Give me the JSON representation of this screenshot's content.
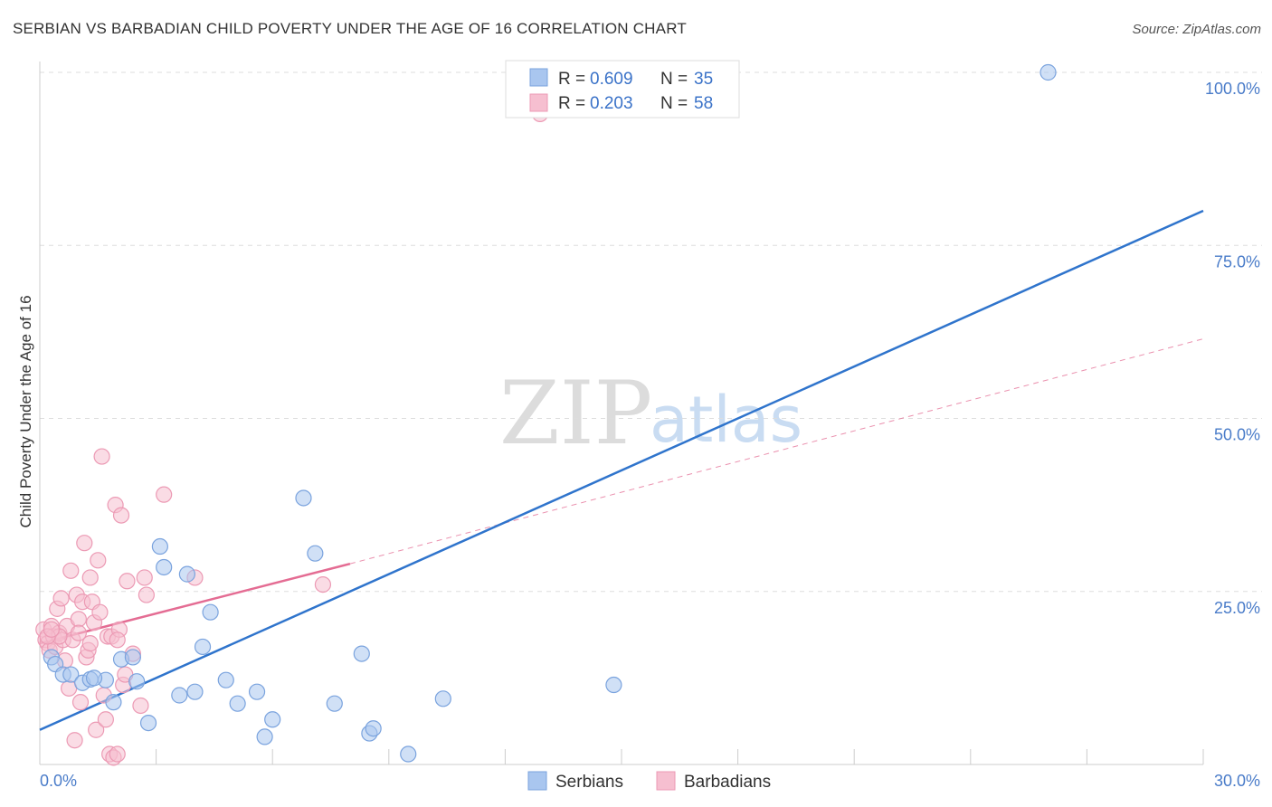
{
  "title": "SERBIAN VS BARBADIAN CHILD POVERTY UNDER THE AGE OF 16 CORRELATION CHART",
  "source": "Source: ZipAtlas.com",
  "colors": {
    "serbians_fill": "#a9c6ef",
    "serbians_stroke": "#7aa3de",
    "serbians_line": "#2f74cc",
    "barbadians_fill": "#f6bfd0",
    "barbadians_stroke": "#ec9ab4",
    "barbadians_line": "#e46c93",
    "grid": "#dddddd",
    "tick_text": "#4a7cc9"
  },
  "chart_data": {
    "type": "scatter",
    "title": "SERBIAN VS BARBADIAN CHILD POVERTY UNDER THE AGE OF 16 CORRELATION CHART",
    "xlabel": "",
    "ylabel": "Child Poverty Under the Age of 16",
    "xlim": [
      0,
      30
    ],
    "ylim": [
      0,
      100
    ],
    "x_tick_labels": [
      "0.0%",
      "30.0%"
    ],
    "y_ticks": [
      25,
      50,
      75,
      100
    ],
    "y_tick_labels": [
      "25.0%",
      "50.0%",
      "75.0%",
      "100.0%"
    ],
    "legend_position": "top-center",
    "series": [
      {
        "name": "Serbians",
        "r_label": "R =",
        "r_value": "0.609",
        "n_label": "N =",
        "n_value": "35",
        "trend": {
          "x0": 0,
          "y0": 5.0,
          "x1": 30,
          "y1": 80.0,
          "style": "solid"
        },
        "points": [
          [
            0.3,
            15.5
          ],
          [
            0.4,
            14.5
          ],
          [
            0.6,
            13.0
          ],
          [
            0.8,
            13.0
          ],
          [
            1.1,
            11.8
          ],
          [
            1.3,
            12.3
          ],
          [
            1.7,
            12.2
          ],
          [
            1.9,
            9.0
          ],
          [
            2.1,
            15.2
          ],
          [
            2.4,
            15.5
          ],
          [
            2.5,
            12.0
          ],
          [
            2.8,
            6.0
          ],
          [
            3.1,
            31.5
          ],
          [
            3.2,
            28.5
          ],
          [
            3.6,
            10.0
          ],
          [
            3.8,
            27.5
          ],
          [
            4.0,
            10.5
          ],
          [
            4.2,
            17.0
          ],
          [
            4.4,
            22.0
          ],
          [
            4.8,
            12.2
          ],
          [
            5.1,
            8.8
          ],
          [
            5.6,
            10.5
          ],
          [
            5.8,
            4.0
          ],
          [
            6.0,
            6.5
          ],
          [
            6.8,
            38.5
          ],
          [
            7.1,
            30.5
          ],
          [
            7.6,
            8.8
          ],
          [
            8.3,
            16.0
          ],
          [
            8.5,
            4.5
          ],
          [
            8.6,
            5.2
          ],
          [
            9.5,
            1.5
          ],
          [
            10.4,
            9.5
          ],
          [
            14.8,
            11.5
          ],
          [
            26.0,
            100.0
          ],
          [
            1.4,
            12.5
          ]
        ]
      },
      {
        "name": "Barbadians",
        "r_label": "R =",
        "r_value": "0.203",
        "n_label": "N =",
        "n_value": "58",
        "trend": {
          "x0": 0,
          "y0": 17.5,
          "x1": 8,
          "y1": 29.0,
          "style": "solid"
        },
        "trend_extension": {
          "x0": 8,
          "y0": 29.0,
          "x1": 30,
          "y1": 61.5,
          "style": "dashed"
        },
        "points": [
          [
            0.1,
            19.5
          ],
          [
            0.15,
            18.0
          ],
          [
            0.2,
            17.5
          ],
          [
            0.25,
            16.5
          ],
          [
            0.3,
            20.0
          ],
          [
            0.35,
            18.5
          ],
          [
            0.4,
            17.0
          ],
          [
            0.45,
            22.5
          ],
          [
            0.5,
            19.0
          ],
          [
            0.55,
            24.0
          ],
          [
            0.6,
            18.0
          ],
          [
            0.65,
            15.0
          ],
          [
            0.7,
            20.0
          ],
          [
            0.75,
            11.0
          ],
          [
            0.8,
            28.0
          ],
          [
            0.85,
            18.0
          ],
          [
            0.9,
            3.5
          ],
          [
            0.95,
            24.5
          ],
          [
            1.0,
            21.0
          ],
          [
            1.05,
            9.0
          ],
          [
            1.1,
            23.5
          ],
          [
            1.15,
            32.0
          ],
          [
            1.2,
            15.5
          ],
          [
            1.25,
            16.5
          ],
          [
            1.3,
            27.0
          ],
          [
            1.35,
            23.5
          ],
          [
            1.4,
            20.5
          ],
          [
            1.45,
            5.0
          ],
          [
            1.5,
            29.5
          ],
          [
            1.55,
            22.0
          ],
          [
            1.6,
            44.5
          ],
          [
            1.65,
            10.0
          ],
          [
            1.7,
            6.5
          ],
          [
            1.75,
            18.5
          ],
          [
            1.8,
            1.5
          ],
          [
            1.85,
            18.5
          ],
          [
            1.9,
            1.0
          ],
          [
            1.95,
            37.5
          ],
          [
            2.0,
            1.5
          ],
          [
            2.05,
            19.5
          ],
          [
            2.1,
            36.0
          ],
          [
            2.15,
            11.5
          ],
          [
            2.2,
            13.0
          ],
          [
            2.25,
            26.5
          ],
          [
            2.4,
            16.0
          ],
          [
            2.6,
            8.5
          ],
          [
            2.7,
            27.0
          ],
          [
            2.75,
            24.5
          ],
          [
            3.2,
            39.0
          ],
          [
            4.0,
            27.0
          ],
          [
            7.3,
            26.0
          ],
          [
            1.0,
            19.0
          ],
          [
            0.5,
            18.5
          ],
          [
            1.3,
            17.5
          ],
          [
            2.0,
            18.0
          ],
          [
            0.2,
            18.5
          ],
          [
            0.3,
            19.5
          ],
          [
            12.9,
            94.0
          ]
        ]
      }
    ]
  }
}
